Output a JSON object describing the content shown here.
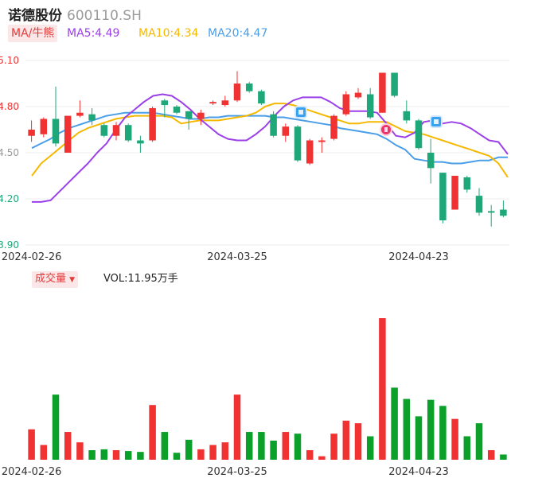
{
  "header": {
    "name": "诺德股份",
    "code": "600110.SH"
  },
  "ma_legend": {
    "tag": "MA/牛熊",
    "ma5": "MA5:4.49",
    "ma10": "MA10:4.34",
    "ma20": "MA20:4.47"
  },
  "volume_legend": {
    "tag": "成交量",
    "arrow": "▼",
    "vol": "VOL:11.95万手"
  },
  "colors": {
    "up": "#f03232",
    "down": "#1ea779",
    "vol_down": "#0aa02a",
    "ma5": "#9b3fe8",
    "ma10": "#f5b800",
    "ma20": "#4a9ee8"
  },
  "chart_data": [
    {
      "type": "candlestick",
      "y_ticks": [
        "5.10",
        "4.80",
        "4.50",
        "4.20",
        "3.90"
      ],
      "ylim": [
        3.9,
        5.1
      ],
      "x_ticks": [
        {
          "label": "2024-02-26",
          "index": 0
        },
        {
          "label": "2024-03-25",
          "index": 17
        },
        {
          "label": "2024-04-23",
          "index": 32
        }
      ],
      "candles": [
        {
          "o": 4.61,
          "c": 4.65,
          "h": 4.71,
          "l": 4.57
        },
        {
          "o": 4.62,
          "c": 4.72,
          "h": 4.73,
          "l": 4.6
        },
        {
          "o": 4.72,
          "c": 4.56,
          "h": 4.93,
          "l": 4.54
        },
        {
          "o": 4.5,
          "c": 4.74,
          "h": 4.74,
          "l": 4.5
        },
        {
          "o": 4.74,
          "c": 4.76,
          "h": 4.84,
          "l": 4.73
        },
        {
          "o": 4.75,
          "c": 4.71,
          "h": 4.79,
          "l": 4.68
        },
        {
          "o": 4.68,
          "c": 4.61,
          "h": 4.69,
          "l": 4.6
        },
        {
          "o": 4.61,
          "c": 4.68,
          "h": 4.7,
          "l": 4.58
        },
        {
          "o": 4.68,
          "c": 4.58,
          "h": 4.69,
          "l": 4.57
        },
        {
          "o": 4.58,
          "c": 4.56,
          "h": 4.61,
          "l": 4.5
        },
        {
          "o": 4.58,
          "c": 4.79,
          "h": 4.8,
          "l": 4.57
        },
        {
          "o": 4.84,
          "c": 4.81,
          "h": 4.85,
          "l": 4.73
        },
        {
          "o": 4.8,
          "c": 4.76,
          "h": 4.81,
          "l": 4.75
        },
        {
          "o": 4.77,
          "c": 4.72,
          "h": 4.77,
          "l": 4.65
        },
        {
          "o": 4.72,
          "c": 4.76,
          "h": 4.78,
          "l": 4.68
        },
        {
          "o": 4.82,
          "c": 4.83,
          "h": 4.84,
          "l": 4.81
        },
        {
          "o": 4.81,
          "c": 4.84,
          "h": 4.87,
          "l": 4.8
        },
        {
          "o": 4.84,
          "c": 4.95,
          "h": 5.03,
          "l": 4.83
        },
        {
          "o": 4.95,
          "c": 4.9,
          "h": 4.96,
          "l": 4.89
        },
        {
          "o": 4.9,
          "c": 4.82,
          "h": 4.91,
          "l": 4.81
        },
        {
          "o": 4.75,
          "c": 4.61,
          "h": 4.77,
          "l": 4.6
        },
        {
          "o": 4.61,
          "c": 4.67,
          "h": 4.69,
          "l": 4.57
        },
        {
          "o": 4.67,
          "c": 4.45,
          "h": 4.68,
          "l": 4.44
        },
        {
          "o": 4.43,
          "c": 4.58,
          "h": 4.59,
          "l": 4.42
        },
        {
          "o": 4.57,
          "c": 4.58,
          "h": 4.6,
          "l": 4.5
        },
        {
          "o": 4.59,
          "c": 4.74,
          "h": 4.75,
          "l": 4.58
        },
        {
          "o": 4.75,
          "c": 4.88,
          "h": 4.9,
          "l": 4.74
        },
        {
          "o": 4.86,
          "c": 4.89,
          "h": 4.92,
          "l": 4.85
        },
        {
          "o": 4.88,
          "c": 4.73,
          "h": 4.92,
          "l": 4.72
        },
        {
          "o": 4.76,
          "c": 5.02,
          "h": 5.02,
          "l": 4.76
        },
        {
          "o": 5.02,
          "c": 4.87,
          "h": 5.02,
          "l": 4.86
        },
        {
          "o": 4.77,
          "c": 4.71,
          "h": 4.84,
          "l": 4.69
        },
        {
          "o": 4.71,
          "c": 4.53,
          "h": 4.72,
          "l": 4.52
        },
        {
          "o": 4.5,
          "c": 4.4,
          "h": 4.59,
          "l": 4.3
        },
        {
          "o": 4.37,
          "c": 4.06,
          "h": 4.37,
          "l": 4.04
        },
        {
          "o": 4.13,
          "c": 4.35,
          "h": 4.35,
          "l": 4.13
        },
        {
          "o": 4.34,
          "c": 4.26,
          "h": 4.35,
          "l": 4.24
        },
        {
          "o": 4.22,
          "c": 4.11,
          "h": 4.27,
          "l": 4.09
        },
        {
          "o": 4.12,
          "c": 4.11,
          "h": 4.16,
          "l": 4.02
        },
        {
          "o": 4.13,
          "c": 4.09,
          "h": 4.19,
          "l": 4.08
        }
      ],
      "ma5": [
        4.18,
        4.18,
        4.19,
        4.25,
        4.31,
        4.37,
        4.43,
        4.5,
        4.56,
        4.65,
        4.73,
        4.78,
        4.83,
        4.87,
        4.88,
        4.87,
        4.83,
        4.78,
        4.72,
        4.67,
        4.62,
        4.59,
        4.58,
        4.58,
        4.62,
        4.67,
        4.74,
        4.8,
        4.84,
        4.86,
        4.86,
        4.86,
        4.83,
        4.79,
        4.77,
        4.77,
        4.77,
        4.76,
        4.69,
        4.61,
        4.6,
        4.63,
        4.7,
        4.71,
        4.69,
        4.7,
        4.69,
        4.66,
        4.62,
        4.58,
        4.57,
        4.49
      ],
      "ma10": [
        4.35,
        4.43,
        4.48,
        4.53,
        4.58,
        4.63,
        4.66,
        4.68,
        4.7,
        4.72,
        4.73,
        4.74,
        4.74,
        4.74,
        4.74,
        4.73,
        4.69,
        4.7,
        4.71,
        4.71,
        4.71,
        4.72,
        4.73,
        4.74,
        4.76,
        4.8,
        4.82,
        4.82,
        4.81,
        4.79,
        4.77,
        4.75,
        4.73,
        4.71,
        4.69,
        4.69,
        4.7,
        4.7,
        4.7,
        4.67,
        4.64,
        4.63,
        4.62,
        4.6,
        4.58,
        4.56,
        4.54,
        4.52,
        4.5,
        4.48,
        4.43,
        4.34
      ],
      "ma20": [
        4.53,
        4.56,
        4.59,
        4.63,
        4.66,
        4.68,
        4.7,
        4.72,
        4.74,
        4.75,
        4.76,
        4.76,
        4.76,
        4.76,
        4.75,
        4.74,
        4.73,
        4.72,
        4.72,
        4.73,
        4.73,
        4.74,
        4.74,
        4.74,
        4.74,
        4.74,
        4.73,
        4.73,
        4.72,
        4.71,
        4.7,
        4.69,
        4.68,
        4.66,
        4.65,
        4.64,
        4.63,
        4.62,
        4.59,
        4.55,
        4.52,
        4.46,
        4.45,
        4.44,
        4.44,
        4.43,
        4.43,
        4.44,
        4.45,
        4.45,
        4.47,
        4.47
      ]
    },
    {
      "type": "bar",
      "values": [
        3.5,
        1.7,
        7.5,
        3.2,
        2.0,
        1.1,
        1.2,
        1.1,
        1.0,
        0.9,
        6.3,
        3.2,
        0.8,
        2.3,
        1.2,
        1.7,
        2.0,
        7.5,
        3.2,
        3.2,
        2.2,
        3.2,
        3.0,
        1.1,
        0.4,
        3.0,
        4.5,
        4.2,
        2.7,
        16.3,
        8.3,
        7.0,
        5.0,
        6.9,
        6.2,
        4.7,
        2.7,
        4.2,
        1.1,
        0.6
      ],
      "up": [
        true,
        true,
        false,
        true,
        true,
        false,
        false,
        true,
        false,
        false,
        true,
        false,
        false,
        false,
        true,
        true,
        true,
        true,
        false,
        false,
        false,
        true,
        false,
        true,
        true,
        true,
        true,
        true,
        false,
        true,
        false,
        false,
        false,
        false,
        false,
        true,
        false,
        false,
        true,
        false
      ]
    }
  ]
}
